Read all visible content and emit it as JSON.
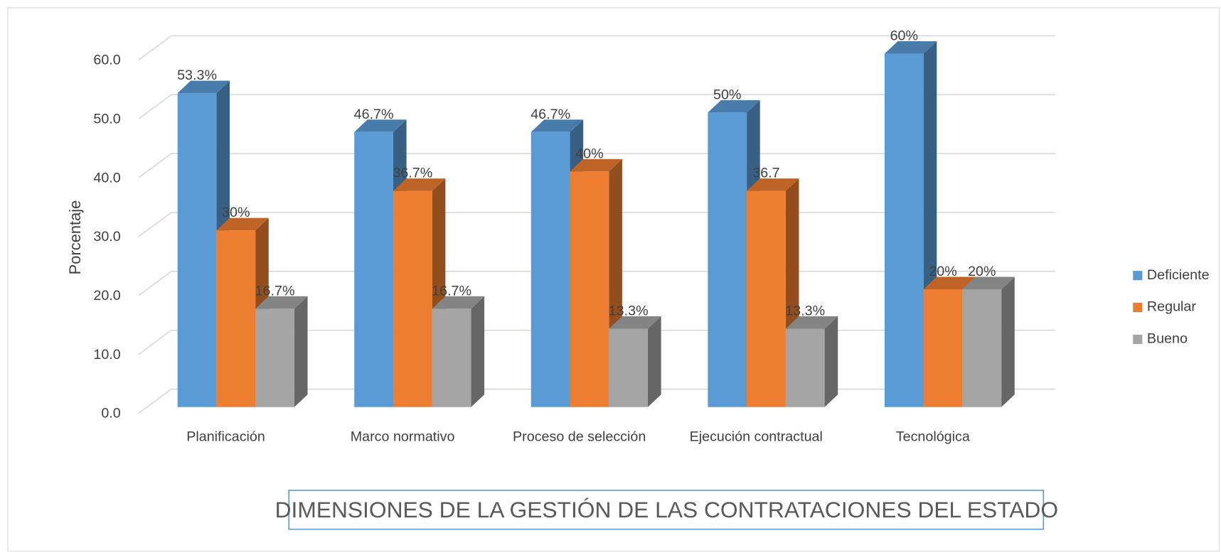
{
  "chart_data": {
    "type": "bar3d",
    "title": "DIMENSIONES DE LA GESTIÓN DE LAS CONTRATACIONES DEL ESTADO",
    "y_label": "Porcentaje",
    "categories": [
      "Planificación",
      "Marco normativo",
      "Proceso de selección",
      "Ejecución contractual",
      "Tecnológica"
    ],
    "series": [
      {
        "name": "Deficiente",
        "color": "#5b9bd5",
        "values": [
          53.3,
          46.7,
          46.7,
          50,
          60
        ],
        "value_labels": [
          "53.3%",
          "46.7%",
          "46.7%",
          "50%",
          "60%"
        ]
      },
      {
        "name": "Regular",
        "color": "#ed7d31",
        "values": [
          30,
          36.7,
          40,
          36.7,
          20
        ],
        "value_labels": [
          "30%",
          "36.7%",
          "40%",
          "36.7",
          "20%"
        ]
      },
      {
        "name": "Bueno",
        "color": "#a5a5a5",
        "values": [
          16.7,
          16.7,
          13.3,
          13.3,
          20
        ],
        "value_labels": [
          "16.7%",
          "16.7%",
          "13.3%",
          "13.3%",
          "20%"
        ]
      }
    ],
    "ylim": [
      0,
      60
    ],
    "yticks": [
      {
        "value": 0,
        "label": "0.0"
      },
      {
        "value": 10,
        "label": "10.0"
      },
      {
        "value": 20,
        "label": "20.0"
      },
      {
        "value": 30,
        "label": "30.0"
      },
      {
        "value": 40,
        "label": "40.0"
      },
      {
        "value": 50,
        "label": "50.0"
      },
      {
        "value": 60,
        "label": "60.0"
      }
    ],
    "grid": true,
    "legend": "right"
  }
}
